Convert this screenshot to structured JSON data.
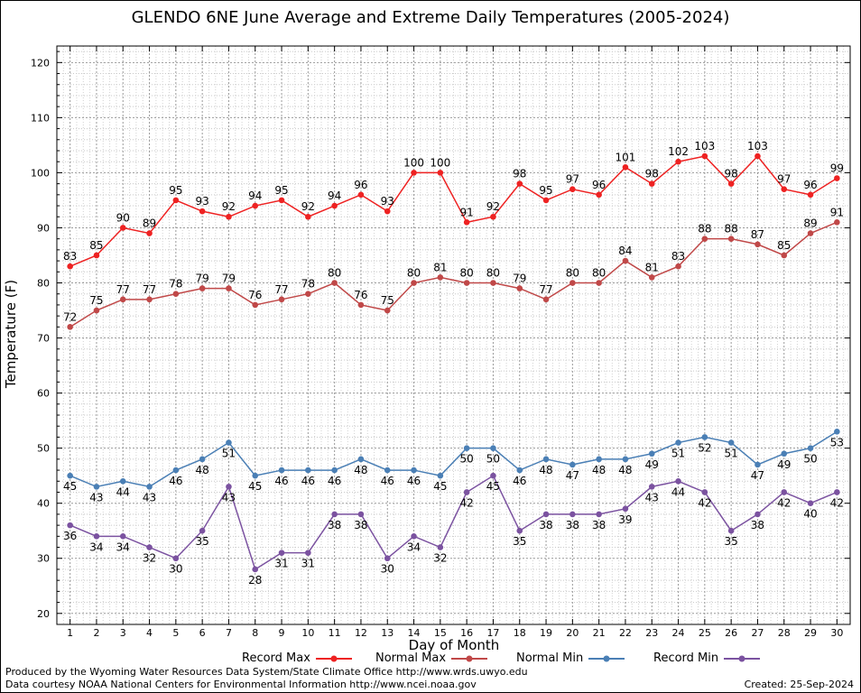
{
  "title": "GLENDO 6NE June Average and Extreme Daily Temperatures (2005-2024)",
  "footer": {
    "produced_by": "Produced by the Wyoming Water Resources Data System/State Climate Office http://www.wrds.uwyo.edu",
    "data_courtesy": "Data courtesy NOAA National Centers for Environmental Information http://www.ncei.noaa.gov",
    "created": "Created:  25-Sep-2024"
  },
  "chart_data": {
    "type": "line",
    "title": "GLENDO 6NE June Average and Extreme Daily Temperatures (2005-2024)",
    "xlabel": "Day of Month",
    "ylabel": "Temperature (F)",
    "x": [
      1,
      2,
      3,
      4,
      5,
      6,
      7,
      8,
      9,
      10,
      11,
      12,
      13,
      14,
      15,
      16,
      17,
      18,
      19,
      20,
      21,
      22,
      23,
      24,
      25,
      26,
      27,
      28,
      29,
      30
    ],
    "xlim": [
      0.5,
      30.5
    ],
    "ylim": [
      18,
      123
    ],
    "yticks": [
      20,
      30,
      40,
      50,
      60,
      70,
      80,
      90,
      100,
      110,
      120
    ],
    "grid": true,
    "legend_position": "bottom",
    "series": [
      {
        "name": "Record Max",
        "color": "#ee2222",
        "label_position": "above",
        "values": [
          83,
          85,
          90,
          89,
          95,
          93,
          92,
          94,
          95,
          92,
          94,
          96,
          93,
          100,
          100,
          91,
          92,
          98,
          95,
          97,
          96,
          101,
          98,
          102,
          103,
          98,
          103,
          97,
          96,
          99
        ]
      },
      {
        "name": "Normal Max",
        "color": "#c04848",
        "label_position": "above",
        "values": [
          72,
          75,
          77,
          77,
          78,
          79,
          79,
          76,
          77,
          78,
          80,
          76,
          75,
          80,
          81,
          80,
          80,
          79,
          77,
          80,
          80,
          84,
          81,
          83,
          88,
          88,
          87,
          85,
          89,
          91
        ]
      },
      {
        "name": "Normal Min",
        "color": "#4a7fb5",
        "label_position": "below",
        "values": [
          45,
          43,
          44,
          43,
          46,
          48,
          51,
          45,
          46,
          46,
          46,
          48,
          46,
          46,
          45,
          50,
          50,
          46,
          48,
          47,
          48,
          48,
          49,
          51,
          52,
          51,
          47,
          49,
          50,
          53
        ]
      },
      {
        "name": "Record Min",
        "color": "#7b52a0",
        "label_position": "below",
        "values": [
          36,
          34,
          34,
          32,
          30,
          35,
          43,
          28,
          31,
          31,
          38,
          38,
          30,
          34,
          32,
          42,
          45,
          35,
          38,
          38,
          38,
          39,
          43,
          44,
          42,
          35,
          38,
          42,
          40,
          42
        ]
      }
    ]
  }
}
